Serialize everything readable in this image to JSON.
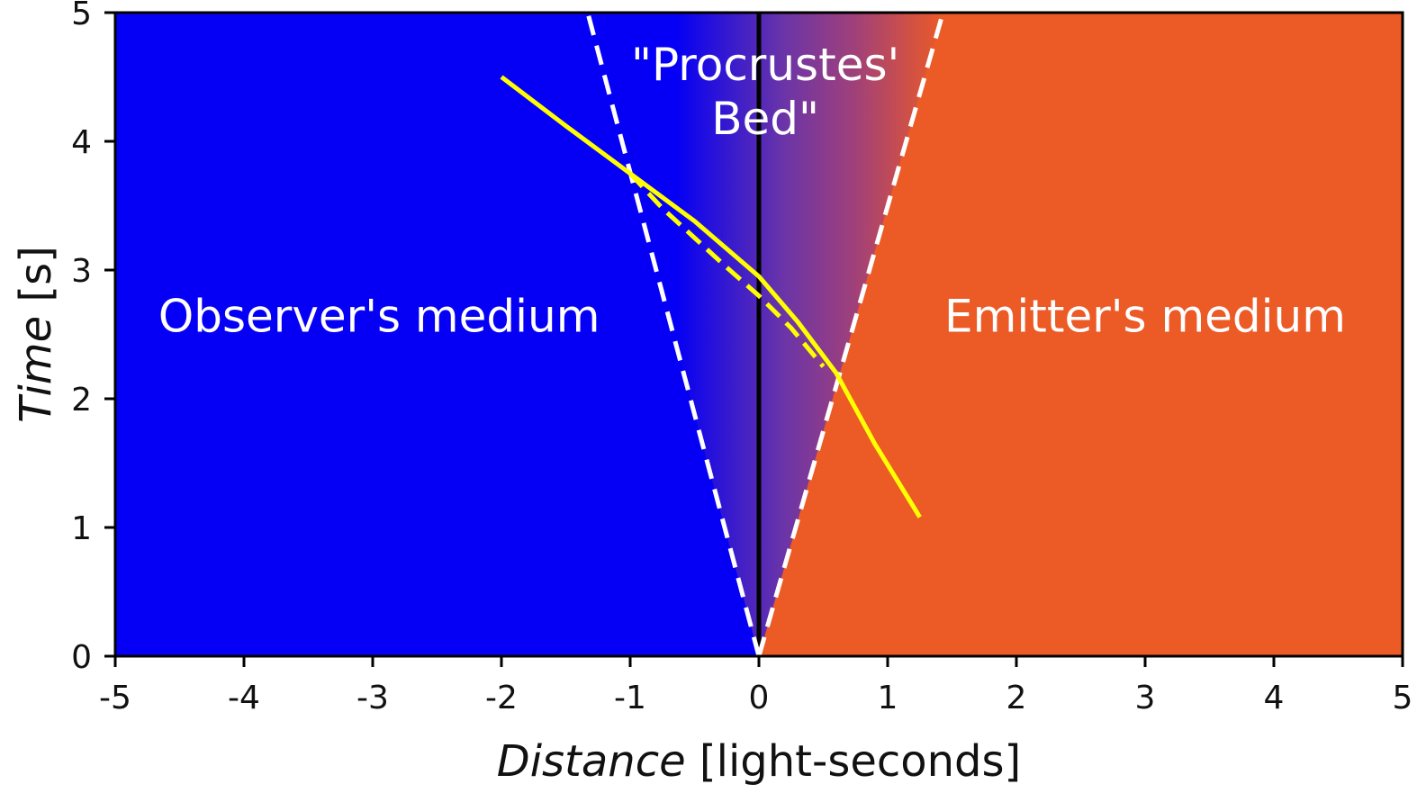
{
  "chart_data": {
    "type": "line",
    "title": "",
    "xlabel": {
      "italic": "Distance",
      "unit": "[light-seconds]"
    },
    "ylabel": {
      "italic": "Time",
      "unit": "[s]"
    },
    "xlim": [
      -5,
      5
    ],
    "ylim": [
      0,
      5
    ],
    "xticks": [
      -5,
      -4,
      -3,
      -2,
      -1,
      0,
      1,
      2,
      3,
      4,
      5
    ],
    "yticks": [
      0,
      1,
      2,
      3,
      4,
      5
    ],
    "grid": false,
    "regions": [
      {
        "name": "Observer's medium",
        "side": "left",
        "color": "#0500f5"
      },
      {
        "name": "Emitter's medium",
        "side": "right",
        "color": "#ec5a26"
      }
    ],
    "annotation": {
      "lines": [
        "\"Procrustes'",
        "Bed\""
      ],
      "x": 0.05,
      "y": 4.6
    },
    "boundary_cone": {
      "left": {
        "x": [
          0,
          -1.33
        ],
        "y": [
          0,
          5
        ],
        "style": "dashed",
        "color": "#ffffff"
      },
      "right": {
        "x": [
          0,
          1.43
        ],
        "y": [
          0,
          5
        ],
        "style": "dashed",
        "color": "#ffffff"
      }
    },
    "center_line": {
      "x": [
        0,
        0
      ],
      "y": [
        0,
        5
      ],
      "color": "#000000"
    },
    "series": [
      {
        "style": "solid",
        "color": "#ffff00",
        "x": [
          -2.0,
          -1.5,
          -1.0,
          -0.5,
          0.0,
          0.3,
          0.6,
          0.9,
          1.25
        ],
        "y": [
          4.5,
          4.12,
          3.75,
          3.38,
          2.95,
          2.6,
          2.2,
          1.65,
          1.08
        ]
      },
      {
        "style": "dashed",
        "color": "#ffff00",
        "x": [
          -1.0,
          -0.75,
          -0.5,
          -0.25,
          0.0,
          0.25,
          0.5
        ],
        "y": [
          3.75,
          3.48,
          3.25,
          3.02,
          2.8,
          2.55,
          2.25
        ]
      }
    ]
  }
}
